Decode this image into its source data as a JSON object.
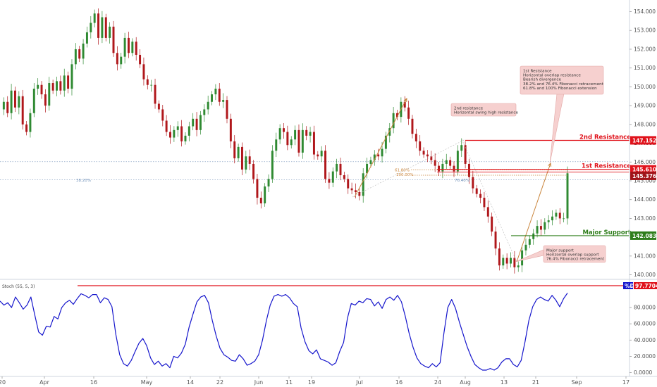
{
  "chart_data": {
    "type": "candlestick",
    "price_axis": {
      "ticks": [
        "154.000",
        "153.000",
        "152.000",
        "151.000",
        "150.000",
        "149.000",
        "148.000",
        "147.000",
        "146.000",
        "145.000",
        "144.000",
        "143.000",
        "142.000",
        "141.000",
        "140.000"
      ],
      "range": [
        139.7,
        154.4
      ]
    },
    "x_axis": {
      "ticks": [
        "20",
        "Apr",
        "16",
        "May",
        "14",
        "22",
        "Jun",
        "11",
        "19",
        "Jul",
        "16",
        "24",
        "Aug",
        "13",
        "21",
        "Sep",
        "17"
      ]
    },
    "levels": [
      {
        "name": "2nd Resistance",
        "value": 147.152,
        "badge": "147.152",
        "color": "#e0121b"
      },
      {
        "name": "1st Resistance",
        "value": 145.61,
        "badge": "145.610",
        "color": "#e0121b"
      },
      {
        "name": "Major Support",
        "value": 142.083,
        "badge": "142.083",
        "color": "#2e7d1a"
      }
    ],
    "current_price": {
      "value": 145.376,
      "badge": "145.376"
    },
    "fib_labels": {
      "fib_618": "61.80%",
      "fib_100": "100.00%",
      "fib_764": "76.40%",
      "fib_382": "38.20%"
    },
    "annotations": [
      {
        "id": "first_res",
        "lines": [
          "1st Resistance",
          "Horizontal overlap resistance",
          "Bearish divergence",
          "38.2% and 76.4% Fibonacci retracement",
          "61.8% and 100% Fibonacci extension"
        ]
      },
      {
        "id": "second_res",
        "lines": [
          "2nd resistance",
          "Horizontal swing high resistance"
        ]
      },
      {
        "id": "major_sup",
        "lines": [
          "Major support",
          "Horizontal overlap support",
          "76.4% Fibonacci retracement"
        ]
      }
    ],
    "price_path": [
      148.8,
      149.2,
      148.6,
      149.8,
      148.9,
      149.5,
      148.0,
      147.6,
      148.6,
      149.9,
      150.1,
      149.6,
      149.0,
      150.2,
      149.8,
      150.3,
      149.8,
      150.6,
      149.9,
      151.2,
      152.0,
      151.5,
      152.3,
      152.9,
      153.4,
      153.9,
      152.6,
      153.7,
      152.6,
      153.2,
      151.8,
      151.2,
      151.6,
      152.6,
      151.8,
      152.4,
      151.7,
      151.2,
      150.4,
      150.1,
      150.1,
      149.1,
      148.8,
      148.2,
      147.6,
      147.3,
      147.7,
      147.9,
      147.1,
      147.4,
      147.9,
      148.3,
      147.7,
      148.5,
      148.8,
      149.2,
      149.6,
      149.9,
      149.2,
      149.3,
      148.3,
      147.1,
      146.2,
      146.8,
      145.6,
      146.3,
      145.9,
      145.1,
      144.1,
      143.8,
      144.7,
      145.1,
      146.6,
      147.2,
      147.8,
      147.6,
      146.9,
      147.2,
      147.7,
      146.5,
      147.7,
      147.4,
      147.6,
      146.4,
      146.3,
      146.6,
      145.1,
      144.9,
      145.5,
      145.9,
      145.3,
      145.1,
      144.6,
      144.5,
      144.4,
      144.2,
      145.4,
      145.9,
      146.1,
      146.4,
      146.3,
      146.7,
      147.4,
      147.8,
      148.6,
      148.4,
      149.2,
      148.9,
      148.3,
      147.5,
      147.1,
      146.6,
      146.4,
      146.3,
      146.1,
      145.8,
      145.5,
      145.9,
      146.1,
      145.8,
      145.5,
      146.6,
      146.9,
      145.9,
      145.2,
      144.6,
      144.3,
      144.1,
      143.6,
      143.1,
      142.3,
      141.4,
      140.5,
      140.9,
      140.6,
      140.9,
      140.4,
      140.5,
      141.3,
      141.6,
      141.9,
      142.2,
      142.6,
      142.4,
      142.8,
      142.9,
      143.1,
      143.3,
      143.0,
      143.0,
      145.4
    ],
    "stochastic": {
      "label": "Stoch (55, 5, 3)",
      "series_name": "%D",
      "value_badge": "97.7704",
      "ticks": [
        "80.0000",
        "60.0000",
        "40.0000",
        "20.0000",
        "0.0000"
      ],
      "range": [
        0,
        100
      ],
      "values": [
        88,
        83,
        86,
        80,
        93,
        86,
        78,
        83,
        93,
        71,
        50,
        46,
        57,
        56,
        69,
        66,
        80,
        86,
        89,
        84,
        91,
        97,
        95,
        92,
        96,
        96,
        86,
        92,
        90,
        81,
        47,
        22,
        11,
        8,
        15,
        26,
        36,
        42,
        33,
        18,
        10,
        14,
        8,
        11,
        6,
        20,
        18,
        24,
        35,
        56,
        72,
        87,
        93,
        95,
        86,
        64,
        45,
        30,
        22,
        19,
        15,
        14,
        22,
        17,
        9,
        11,
        14,
        22,
        40,
        64,
        83,
        94,
        96,
        94,
        96,
        92,
        85,
        81,
        55,
        38,
        27,
        23,
        28,
        17,
        15,
        13,
        9,
        12,
        26,
        37,
        67,
        85,
        83,
        88,
        86,
        91,
        90,
        82,
        87,
        79,
        90,
        93,
        89,
        95,
        87,
        69,
        48,
        31,
        18,
        11,
        8,
        6,
        11,
        7,
        12,
        49,
        80,
        90,
        79,
        62,
        47,
        32,
        20,
        10,
        6,
        3,
        3,
        5,
        3,
        6,
        13,
        17,
        17,
        10,
        7,
        15,
        38,
        64,
        81,
        90,
        93,
        90,
        88,
        95,
        89,
        81,
        91,
        97.8
      ]
    },
    "colors": {
      "up": "#2f8a32",
      "down": "#b0171b",
      "stoch": "#1515cc",
      "resistance": "#e0121b",
      "support": "#2e7d1a",
      "dotted": "#8fa6c6",
      "fib": "#c9843b",
      "annotation_bg": "#f6d0cf"
    }
  }
}
